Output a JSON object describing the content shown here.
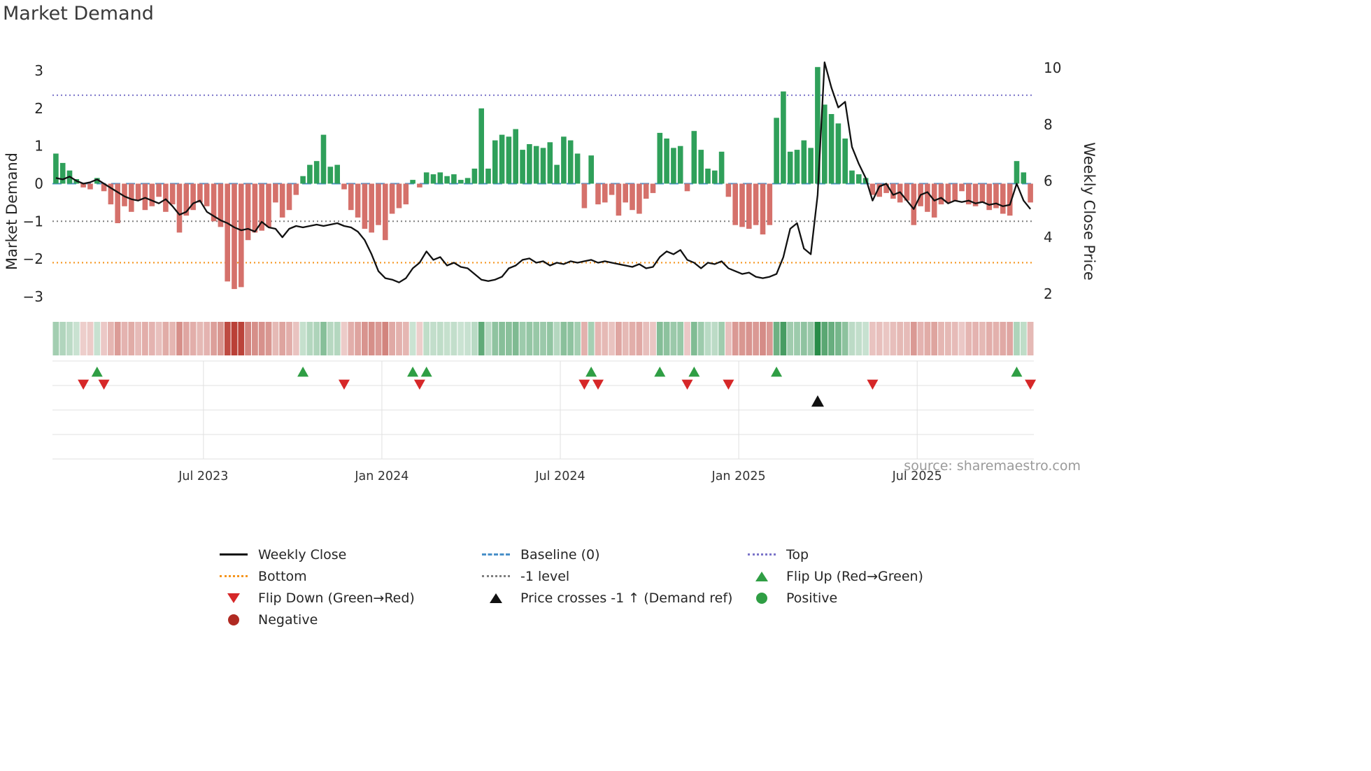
{
  "title": "Market Demand",
  "source": "source: sharemaestro.com",
  "axes": {
    "left_title": "Market Demand",
    "right_title": "Weekly Close Price",
    "left_ticks": [
      {
        "v": 3,
        "label": "3"
      },
      {
        "v": 2,
        "label": "2"
      },
      {
        "v": 1,
        "label": "1"
      },
      {
        "v": 0,
        "label": "0"
      },
      {
        "v": -1,
        "label": "−1"
      },
      {
        "v": -2,
        "label": "−2"
      },
      {
        "v": -3,
        "label": "−3"
      }
    ],
    "right_ticks": [
      {
        "v": 10,
        "label": "10"
      },
      {
        "v": 8,
        "label": "8"
      },
      {
        "v": 6,
        "label": "6"
      },
      {
        "v": 4,
        "label": "4"
      },
      {
        "v": 2,
        "label": "2"
      }
    ],
    "x_ticks": [
      "Jul 2023",
      "Jan 2024",
      "Jul 2024",
      "Jan 2025",
      "Jul 2025"
    ]
  },
  "colors": {
    "positive": "#2fa05a",
    "negative": "#d5716b",
    "line": "#111111",
    "baseline": "#4a90c8",
    "top": "#7b74c9",
    "bottom": "#f5951e",
    "minus_one": "#7f7f7f",
    "flip_up": "#2f9e44",
    "flip_down": "#d62728",
    "positive_dot": "#2f9e44",
    "negative_dot": "#b02a22",
    "grid": "#e0e0e0"
  },
  "legend": [
    {
      "id": "weekly-close",
      "label": "Weekly Close",
      "swatch": "line",
      "color": "#111111"
    },
    {
      "id": "baseline",
      "label": "Baseline (0)",
      "swatch": "dashed",
      "color": "#4a90c8"
    },
    {
      "id": "top",
      "label": "Top",
      "swatch": "dotted",
      "color": "#7b74c9"
    },
    {
      "id": "bottom",
      "label": "Bottom",
      "swatch": "dotted",
      "color": "#f5951e"
    },
    {
      "id": "minus-1-level",
      "label": "-1 level",
      "swatch": "dotted",
      "color": "#7f7f7f"
    },
    {
      "id": "flip-up",
      "label": "Flip Up (Red→Green)",
      "swatch": "triangle-up",
      "color": "#2f9e44"
    },
    {
      "id": "flip-down",
      "label": "Flip Down (Green→Red)",
      "swatch": "triangle-down",
      "color": "#d62728"
    },
    {
      "id": "price-cross",
      "label": "Price crosses -1 ↑ (Demand ref)",
      "swatch": "triangle-up",
      "color": "#111111"
    },
    {
      "id": "positive",
      "label": "Positive",
      "swatch": "circle",
      "color": "#2f9e44"
    },
    {
      "id": "negative",
      "label": "Negative",
      "swatch": "circle",
      "color": "#b02a22"
    }
  ],
  "chart_data": {
    "type": "bar+line",
    "title": "Market Demand",
    "x_start": "2023-02-06",
    "freq": "weekly",
    "ylabel_left": "Market Demand",
    "ylabel_right": "Weekly Close Price",
    "demand_ylim": [
      -3.3,
      3.3
    ],
    "price_ylim": [
      1.5,
      10.3
    ],
    "reference_lines": {
      "baseline": 0,
      "top": 2.35,
      "minus_one": -1,
      "bottom": -2.1
    },
    "x_tick_weeks": [
      22,
      48,
      74,
      100,
      126
    ],
    "demand": [
      0.8,
      0.55,
      0.35,
      0.12,
      -0.1,
      -0.15,
      0.15,
      -0.2,
      -0.55,
      -1.05,
      -0.6,
      -0.75,
      -0.45,
      -0.7,
      -0.6,
      -0.35,
      -0.75,
      -0.55,
      -1.3,
      -0.85,
      -0.7,
      -0.5,
      -0.6,
      -1.0,
      -1.15,
      -2.6,
      -2.8,
      -2.75,
      -1.5,
      -1.3,
      -1.25,
      -1.15,
      -0.5,
      -0.9,
      -0.7,
      -0.3,
      0.2,
      0.5,
      0.6,
      1.3,
      0.45,
      0.5,
      -0.15,
      -0.7,
      -0.9,
      -1.2,
      -1.3,
      -1.1,
      -1.5,
      -0.8,
      -0.65,
      -0.55,
      0.1,
      -0.1,
      0.3,
      0.25,
      0.3,
      0.2,
      0.25,
      0.1,
      0.15,
      0.4,
      2.0,
      0.4,
      1.15,
      1.3,
      1.25,
      1.45,
      0.9,
      1.05,
      1.0,
      0.95,
      1.1,
      0.5,
      1.25,
      1.15,
      0.8,
      -0.65,
      0.75,
      -0.55,
      -0.5,
      -0.3,
      -0.85,
      -0.5,
      -0.7,
      -0.8,
      -0.4,
      -0.25,
      1.35,
      1.2,
      0.95,
      1.0,
      -0.2,
      1.4,
      0.9,
      0.4,
      0.35,
      0.85,
      -0.35,
      -1.1,
      -1.15,
      -1.2,
      -1.1,
      -1.35,
      -1.1,
      1.75,
      2.45,
      0.85,
      0.9,
      1.15,
      0.95,
      3.1,
      2.1,
      1.85,
      1.6,
      1.2,
      0.35,
      0.25,
      0.15,
      -0.3,
      -0.35,
      -0.25,
      -0.4,
      -0.5,
      -0.45,
      -1.1,
      -0.6,
      -0.75,
      -0.9,
      -0.55,
      -0.5,
      -0.45,
      -0.2,
      -0.55,
      -0.6,
      -0.5,
      -0.7,
      -0.65,
      -0.8,
      -0.85,
      0.6,
      0.3,
      -0.5
    ],
    "price": [
      6.1,
      6.05,
      6.15,
      6.0,
      5.9,
      5.95,
      6.05,
      5.9,
      5.75,
      5.6,
      5.45,
      5.35,
      5.3,
      5.4,
      5.3,
      5.2,
      5.35,
      5.1,
      4.8,
      4.9,
      5.2,
      5.3,
      4.9,
      4.75,
      4.6,
      4.5,
      4.35,
      4.25,
      4.3,
      4.2,
      4.55,
      4.35,
      4.3,
      4.0,
      4.3,
      4.4,
      4.35,
      4.4,
      4.45,
      4.4,
      4.45,
      4.5,
      4.4,
      4.35,
      4.2,
      3.9,
      3.4,
      2.8,
      2.55,
      2.5,
      2.4,
      2.55,
      2.9,
      3.1,
      3.5,
      3.2,
      3.3,
      3.0,
      3.1,
      2.95,
      2.9,
      2.7,
      2.5,
      2.45,
      2.5,
      2.6,
      2.9,
      3.0,
      3.2,
      3.25,
      3.1,
      3.15,
      3.0,
      3.1,
      3.05,
      3.15,
      3.1,
      3.15,
      3.2,
      3.1,
      3.15,
      3.1,
      3.05,
      3.0,
      2.95,
      3.05,
      2.9,
      2.95,
      3.3,
      3.5,
      3.4,
      3.55,
      3.2,
      3.1,
      2.9,
      3.1,
      3.05,
      3.15,
      2.9,
      2.8,
      2.7,
      2.75,
      2.6,
      2.55,
      2.6,
      2.7,
      3.3,
      4.3,
      4.5,
      3.6,
      3.4,
      5.5,
      10.2,
      9.3,
      8.6,
      8.8,
      7.2,
      6.6,
      6.1,
      5.3,
      5.8,
      5.9,
      5.5,
      5.6,
      5.3,
      5.0,
      5.5,
      5.6,
      5.3,
      5.4,
      5.2,
      5.3,
      5.25,
      5.3,
      5.2,
      5.25,
      5.15,
      5.2,
      5.1,
      5.15,
      5.9,
      5.3,
      5.0
    ],
    "flip_up_weeks": [
      6,
      36,
      52,
      54,
      78,
      88,
      93,
      105,
      140
    ],
    "flip_down_weeks": [
      4,
      7,
      42,
      53,
      77,
      79,
      92,
      98,
      119,
      142
    ],
    "price_cross_weeks": [
      111
    ]
  }
}
